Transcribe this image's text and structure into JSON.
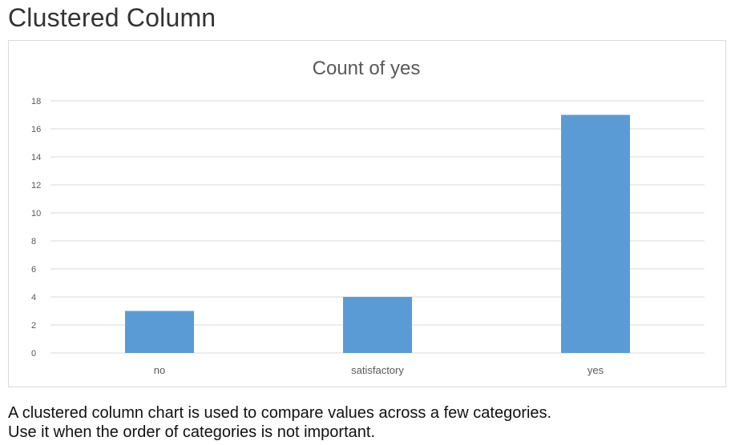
{
  "heading": "Clustered Column",
  "description": {
    "line1": "A clustered column chart is used to compare values across a few categories.",
    "line2": "Use it when the order of categories is not important."
  },
  "colors": {
    "bar": "#5b9bd5",
    "grid": "#d9d9d9",
    "tick_text": "#595959",
    "title_text": "#595959"
  },
  "chart_data": {
    "type": "bar",
    "title": "Count of yes",
    "categories": [
      "no",
      "satisfactory",
      "yes"
    ],
    "values": [
      3,
      4,
      17
    ],
    "ylim": [
      0,
      18
    ],
    "yticks": [
      0,
      2,
      4,
      6,
      8,
      10,
      12,
      14,
      16,
      18
    ],
    "grid": true,
    "legend": "none"
  }
}
